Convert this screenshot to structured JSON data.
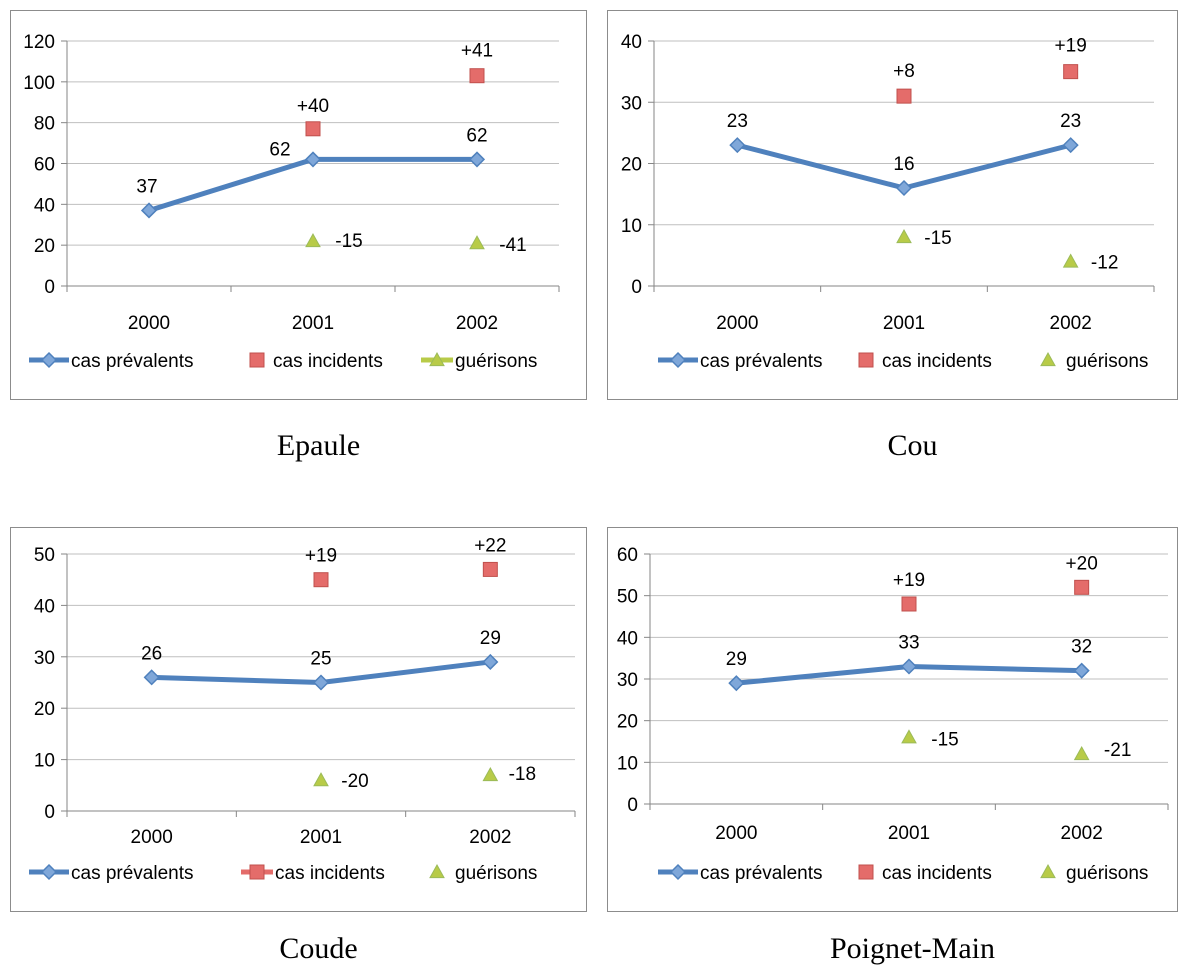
{
  "colors": {
    "prevalent": "#4F81BD",
    "incident": "#E46C6A",
    "incident_border": "#C0504D",
    "recovery": "#B8CB48",
    "recovery_border": "#9BBB59",
    "grid": "#BFBFBF",
    "axis": "#868686"
  },
  "chart_data": [
    {
      "type": "line",
      "caption": "Epaule",
      "categories": [
        "2000",
        "2001",
        "2002"
      ],
      "ylim": [
        0,
        120
      ],
      "yticks": [
        0,
        20,
        40,
        60,
        80,
        100,
        120
      ],
      "grid": true,
      "legend_position": "bottom",
      "series": [
        {
          "name": "cas prévalents",
          "marker": "diamond-line",
          "values": [
            37,
            62,
            62
          ],
          "labels": [
            "37",
            "62",
            "62"
          ]
        },
        {
          "name": "cas incidents",
          "marker": "square",
          "values": [
            null,
            77,
            103
          ],
          "labels": [
            "",
            "+40",
            "+41"
          ]
        },
        {
          "name": "guérisons",
          "marker": "triangle",
          "values": [
            null,
            22,
            21
          ],
          "labels": [
            "",
            "-15",
            "-41"
          ]
        }
      ]
    },
    {
      "type": "line",
      "caption": "Cou",
      "categories": [
        "2000",
        "2001",
        "2002"
      ],
      "ylim": [
        0,
        40
      ],
      "yticks": [
        0,
        10,
        20,
        30,
        40
      ],
      "grid": true,
      "legend_position": "bottom",
      "series": [
        {
          "name": "cas prévalents",
          "marker": "diamond-line",
          "values": [
            23,
            16,
            23
          ],
          "labels": [
            "23",
            "16",
            "23"
          ]
        },
        {
          "name": "cas incidents",
          "marker": "square",
          "values": [
            null,
            31,
            35
          ],
          "labels": [
            "",
            "+8",
            "+19"
          ]
        },
        {
          "name": "guérisons",
          "marker": "triangle",
          "values": [
            null,
            8,
            4
          ],
          "labels": [
            "",
            "-15",
            "-12"
          ]
        }
      ]
    },
    {
      "type": "line",
      "caption": "Coude",
      "categories": [
        "2000",
        "2001",
        "2002"
      ],
      "ylim": [
        0,
        50
      ],
      "yticks": [
        0,
        10,
        20,
        30,
        40,
        50
      ],
      "grid": true,
      "legend_position": "bottom",
      "series": [
        {
          "name": "cas prévalents",
          "marker": "diamond-line",
          "values": [
            26,
            25,
            29
          ],
          "labels": [
            "26",
            "25",
            "29"
          ]
        },
        {
          "name": "cas incidents",
          "marker": "square",
          "values": [
            null,
            45,
            47
          ],
          "labels": [
            "",
            "+19",
            "+22"
          ]
        },
        {
          "name": "guérisons",
          "marker": "triangle",
          "values": [
            null,
            6,
            7
          ],
          "labels": [
            "",
            "-20",
            "-18"
          ]
        }
      ]
    },
    {
      "type": "line",
      "caption": "Poignet-Main",
      "categories": [
        "2000",
        "2001",
        "2002"
      ],
      "ylim": [
        0,
        60
      ],
      "yticks": [
        0,
        10,
        20,
        30,
        40,
        50,
        60
      ],
      "grid": true,
      "legend_position": "bottom",
      "series": [
        {
          "name": "cas prévalents",
          "marker": "diamond-line",
          "values": [
            29,
            33,
            32
          ],
          "labels": [
            "29",
            "33",
            "32"
          ]
        },
        {
          "name": "cas incidents",
          "marker": "square",
          "values": [
            null,
            48,
            52
          ],
          "labels": [
            "",
            "+19",
            "+20"
          ]
        },
        {
          "name": "guérisons",
          "marker": "triangle",
          "values": [
            null,
            16,
            12
          ],
          "labels": [
            "",
            "-15",
            "-21"
          ]
        }
      ]
    }
  ]
}
